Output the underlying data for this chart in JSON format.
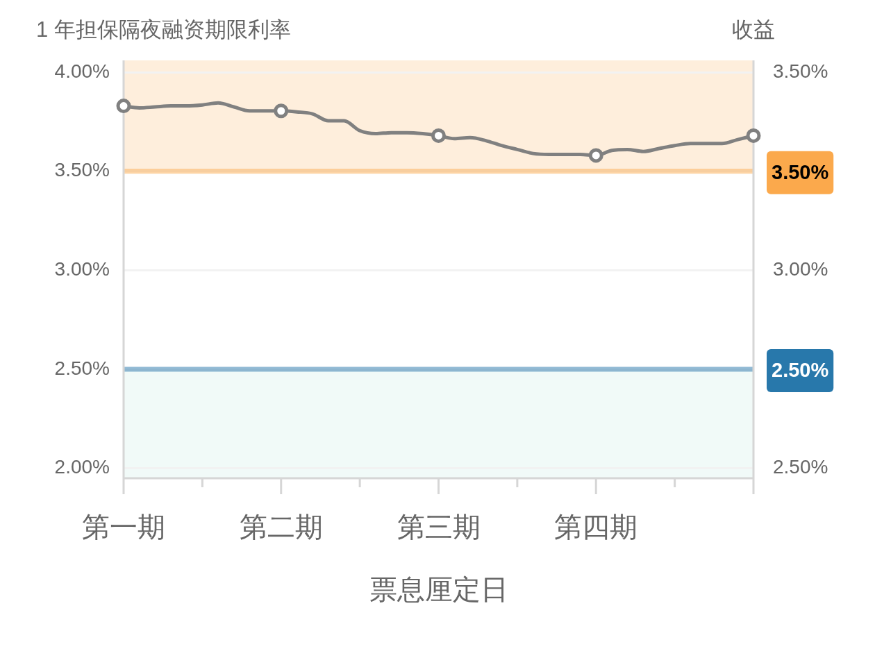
{
  "chart_data": {
    "type": "line",
    "xlabel": "票息厘定日",
    "ylabel": "1 年担保隔夜融资期限利率",
    "y2label": "收益",
    "categories": [
      "第一期",
      null,
      null,
      null,
      null,
      null,
      null,
      null,
      null,
      null,
      "第二期",
      null,
      null,
      null,
      null,
      null,
      null,
      null,
      null,
      null,
      "第三期",
      null,
      null,
      null,
      null,
      null,
      null,
      null,
      null,
      null,
      "第四期",
      null,
      null,
      null,
      null,
      null,
      null,
      null,
      null,
      null,
      null
    ],
    "ylim": [
      1.95,
      4.06
    ],
    "yticks": [
      {
        "value": 2,
        "label": "2.00%"
      },
      {
        "value": 2.5,
        "label": "2.50%"
      },
      {
        "value": 3,
        "label": "3.00%"
      },
      {
        "value": 3.5,
        "label": "3.50%"
      },
      {
        "value": 4,
        "label": "4.00%"
      }
    ],
    "y2lim": [
      2.475,
      3.53
    ],
    "y2ticks": [
      {
        "value": 2.5,
        "label": "2.50%"
      },
      {
        "value": 3,
        "label": "3.00%"
      },
      {
        "value": 3.5,
        "label": "3.50%"
      }
    ],
    "grid": "y",
    "series": [
      {
        "color": "#808080",
        "marker": "none",
        "values": [
          3.83,
          3.82,
          3.825,
          3.83,
          3.83,
          3.835,
          3.845,
          3.825,
          3.805,
          3.805,
          3.805,
          3.8,
          3.79,
          3.755,
          3.755,
          3.705,
          3.69,
          3.695,
          3.695,
          3.69,
          3.68,
          3.665,
          3.67,
          3.655,
          3.63,
          3.61,
          3.59,
          3.585,
          3.585,
          3.585,
          3.58,
          3.605,
          3.61,
          3.6,
          3.615,
          3.63,
          3.64,
          3.64,
          3.64,
          3.66,
          3.68
        ]
      },
      {
        "type": "scatter",
        "color": "#808080",
        "marker": "circle",
        "values": [
          3.83,
          null,
          null,
          null,
          null,
          null,
          null,
          null,
          null,
          null,
          3.805,
          null,
          null,
          null,
          null,
          null,
          null,
          null,
          null,
          null,
          3.68,
          null,
          null,
          null,
          null,
          null,
          null,
          null,
          null,
          null,
          3.58,
          null,
          null,
          null,
          null,
          null,
          null,
          null,
          null,
          null,
          3.68
        ]
      }
    ],
    "ref_lines": [
      {
        "axis": "y",
        "value": 3.5,
        "label": "3.50%",
        "color": "#fba94c"
      },
      {
        "axis": "y",
        "value": 2.5,
        "label": "2.50%",
        "color": "#2878ab"
      }
    ],
    "bands": [
      {
        "axis": "y",
        "from": 3.5,
        "to": 4.06,
        "color": "#feeedc"
      },
      {
        "axis": "y",
        "from": 1.95,
        "to": 2.5,
        "color": "#f1faf8"
      }
    ]
  }
}
